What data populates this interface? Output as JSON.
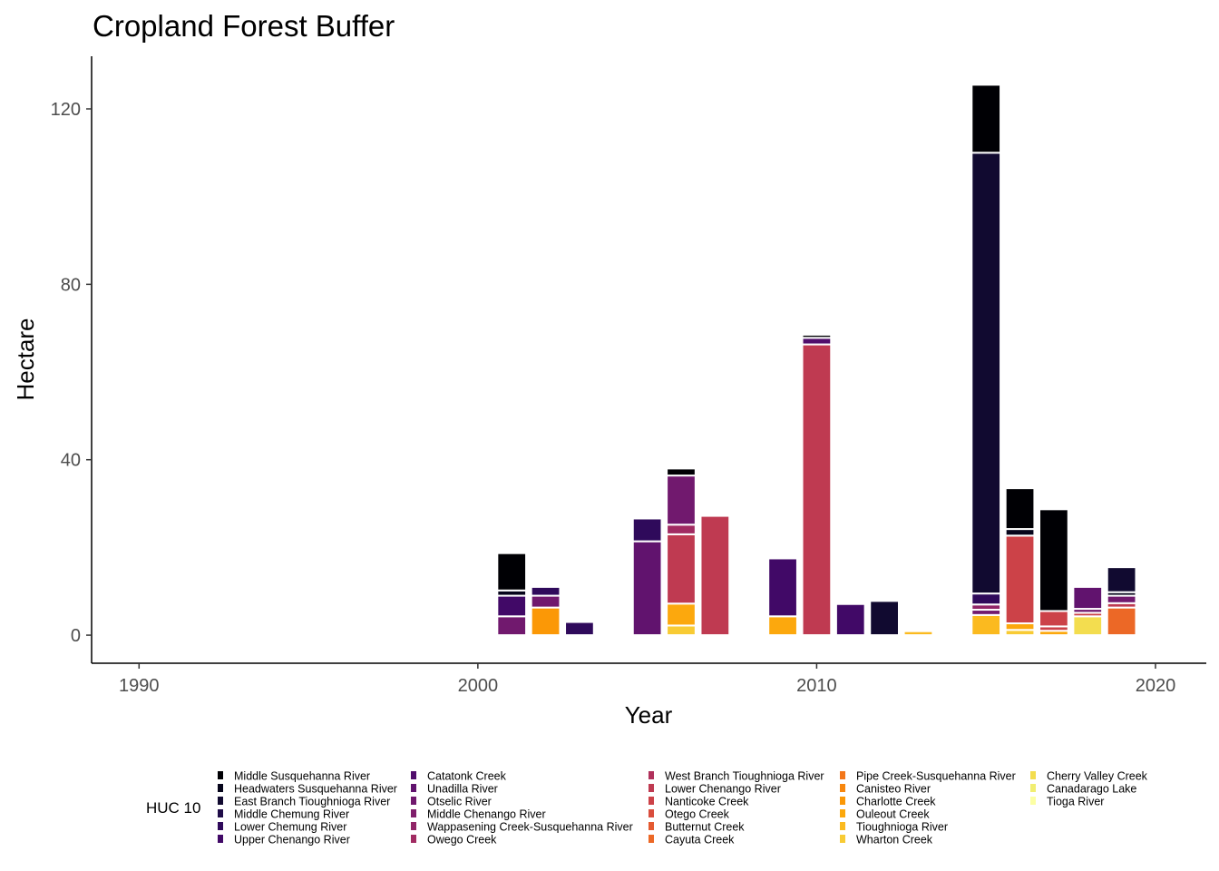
{
  "chart_data": {
    "type": "bar",
    "title": "Cropland Forest Buffer",
    "xlabel": "Year",
    "ylabel": "Hectare",
    "xlim": [
      1988.6,
      2021.5
    ],
    "ylim": [
      -6.4,
      132
    ],
    "x_ticks": [
      1990,
      2000,
      2010,
      2020
    ],
    "y_ticks": [
      0,
      40,
      80,
      120
    ],
    "grid": false,
    "stacked": true,
    "bar_width_years": 0.85,
    "legend": {
      "title": "HUC 10",
      "position": "bottom",
      "columns": 5,
      "entries": [
        {
          "name": "Middle Susquehanna River",
          "color": "#000004"
        },
        {
          "name": "Headwaters Susquehanna River",
          "color": "#06051b"
        },
        {
          "name": "East Branch Tioughnioga River",
          "color": "#110a30"
        },
        {
          "name": "Middle Chemung River",
          "color": "#1f0c48"
        },
        {
          "name": "Lower Chemung River",
          "color": "#2f0a5b"
        },
        {
          "name": "Upper Chenango River",
          "color": "#410967"
        },
        {
          "name": "Catatonk Creek",
          "color": "#510e6c"
        },
        {
          "name": "Unadilla River",
          "color": "#61136e"
        },
        {
          "name": "Otselic River",
          "color": "#71196e"
        },
        {
          "name": "Middle Chenango River",
          "color": "#801f6c"
        },
        {
          "name": "Wappasening Creek-Susquehanna River",
          "color": "#912568"
        },
        {
          "name": "Owego Creek",
          "color": "#a12b62"
        },
        {
          "name": "West Branch Tioughnioga River",
          "color": "#b0315b"
        },
        {
          "name": "Lower Chenango River",
          "color": "#bf3a51"
        },
        {
          "name": "Nanticoke Creek",
          "color": "#cc4248"
        },
        {
          "name": "Otego Creek",
          "color": "#d94d3d"
        },
        {
          "name": "Butternut Creek",
          "color": "#e45a31"
        },
        {
          "name": "Cayuta Creek",
          "color": "#ec6826"
        },
        {
          "name": "Pipe Creek-Susquehanna River",
          "color": "#f3771a"
        },
        {
          "name": "Canisteo River",
          "color": "#f8870e"
        },
        {
          "name": "Charlotte Creek",
          "color": "#fb9806"
        },
        {
          "name": "Ouleout Creek",
          "color": "#fca80d"
        },
        {
          "name": "Tioughnioga River",
          "color": "#fbba1f"
        },
        {
          "name": "Wharton Creek",
          "color": "#f8cb34"
        },
        {
          "name": "Cherry Valley Creek",
          "color": "#f3dd4f"
        },
        {
          "name": "Canadarago Lake",
          "color": "#f1ee71"
        },
        {
          "name": "Tioga River",
          "color": "#fcffa4"
        }
      ]
    },
    "bars": [
      {
        "x": 2001,
        "segments": [
          [
            "Otselic River",
            4.3
          ],
          [
            "Upper Chenango River",
            4.7
          ],
          [
            "Headwaters Susquehanna River",
            1.2
          ],
          [
            "Middle Susquehanna River",
            8.5
          ]
        ]
      },
      {
        "x": 2002,
        "segments": [
          [
            "Charlotte Creek",
            6.3
          ],
          [
            "Otselic River",
            2.7
          ],
          [
            "Lower Chemung River",
            2.0
          ]
        ]
      },
      {
        "x": 2003,
        "segments": [
          [
            "Lower Chemung River",
            3.0
          ]
        ]
      },
      {
        "x": 2005,
        "segments": [
          [
            "Unadilla River",
            21.4
          ],
          [
            "Lower Chemung River",
            5.2
          ]
        ]
      },
      {
        "x": 2006,
        "segments": [
          [
            "Wharton Creek",
            2.2
          ],
          [
            "Ouleout Creek",
            5.0
          ],
          [
            "Lower Chenango River",
            15.8
          ],
          [
            "Owego Creek",
            2.2
          ],
          [
            "Otselic River",
            11.2
          ],
          [
            "Middle Susquehanna River",
            1.6
          ]
        ]
      },
      {
        "x": 2007,
        "segments": [
          [
            "Lower Chenango River",
            27.2
          ]
        ]
      },
      {
        "x": 2009,
        "segments": [
          [
            "Ouleout Creek",
            4.3
          ],
          [
            "Upper Chenango River",
            13.2
          ]
        ]
      },
      {
        "x": 2010,
        "segments": [
          [
            "Lower Chenango River",
            66.3
          ],
          [
            "Catatonk Creek",
            1.5
          ],
          [
            "Middle Susquehanna River",
            0.7
          ]
        ]
      },
      {
        "x": 2011,
        "segments": [
          [
            "Upper Chenango River",
            7.1
          ]
        ]
      },
      {
        "x": 2012,
        "segments": [
          [
            "East Branch Tioughnioga River",
            7.8
          ]
        ]
      },
      {
        "x": 2013,
        "segments": [
          [
            "Tioughnioga River",
            0.9
          ]
        ]
      },
      {
        "x": 2015,
        "segments": [
          [
            "Tioughnioga River",
            4.6
          ],
          [
            "Otselic River",
            1.2
          ],
          [
            "Wappasening Creek-Susquehanna River",
            1.2
          ],
          [
            "Lower Chemung River",
            2.5
          ],
          [
            "East Branch Tioughnioga River",
            100.5
          ],
          [
            "Middle Susquehanna River",
            15.5
          ]
        ]
      },
      {
        "x": 2016,
        "segments": [
          [
            "Wharton Creek",
            1.2
          ],
          [
            "Ouleout Creek",
            1.5
          ],
          [
            "Nanticoke Creek",
            20.0
          ],
          [
            "Headwaters Susquehanna River",
            1.5
          ],
          [
            "Middle Susquehanna River",
            9.3
          ]
        ]
      },
      {
        "x": 2017,
        "segments": [
          [
            "Ouleout Creek",
            1.0
          ],
          [
            "Nanticoke Creek",
            1.0
          ],
          [
            "Nanticoke Creek",
            3.5
          ],
          [
            "Middle Susquehanna River",
            23.2
          ]
        ]
      },
      {
        "x": 2018,
        "segments": [
          [
            "Cherry Valley Creek",
            4.3
          ],
          [
            "Nanticoke Creek",
            0.8
          ],
          [
            "Otselic River",
            0.9
          ],
          [
            "Unadilla River",
            5.0
          ]
        ]
      },
      {
        "x": 2019,
        "segments": [
          [
            "Cayuta Creek",
            6.3
          ],
          [
            "Lower Chenango River",
            1.0
          ],
          [
            "Otselic River",
            1.7
          ],
          [
            "Headwaters Susquehanna River",
            0.8
          ],
          [
            "East Branch Tioughnioga River",
            5.7
          ]
        ]
      }
    ]
  }
}
